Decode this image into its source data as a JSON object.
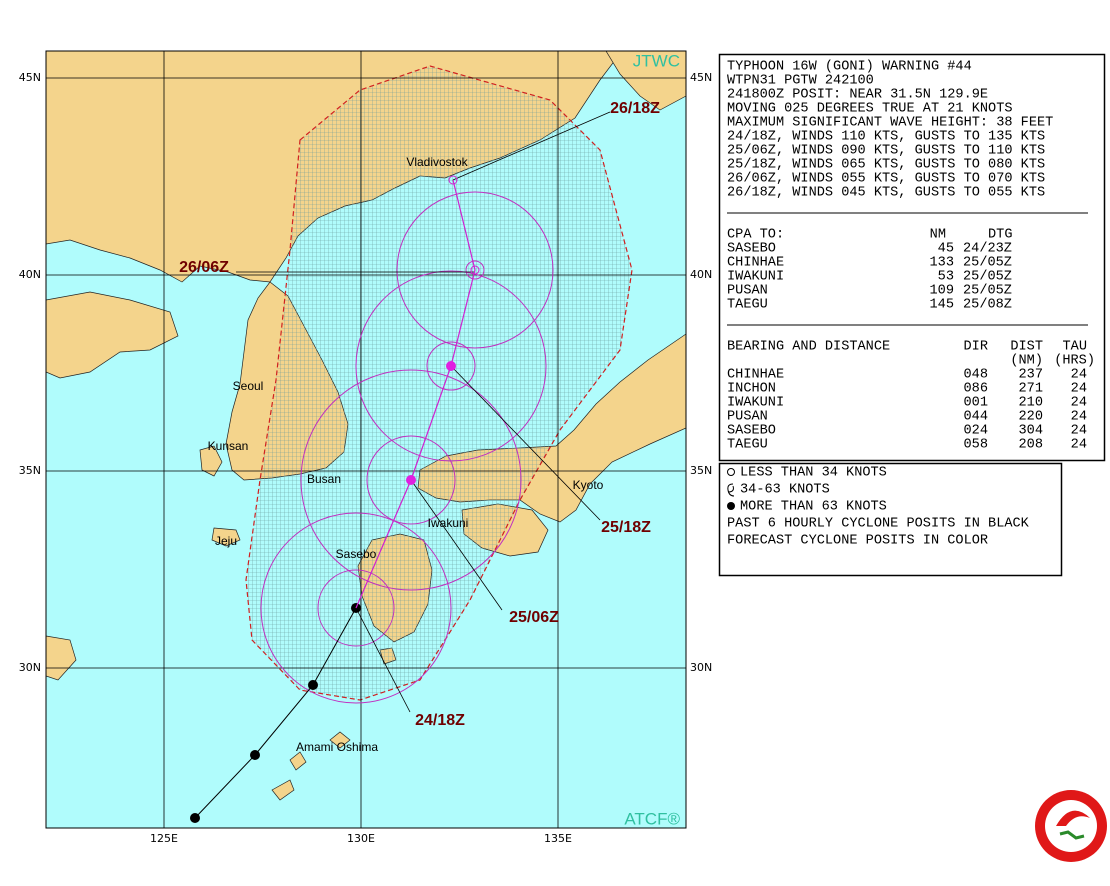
{
  "map": {
    "corner_labels": {
      "top": "JTWC",
      "bottom": "ATCF®"
    },
    "lat_labels": [
      "45N",
      "40N",
      "35N",
      "30N"
    ],
    "lon_labels": [
      "125E",
      "130E",
      "135E"
    ],
    "places": [
      "Vladivostok",
      "Seoul",
      "Kunsan",
      "Busan",
      "Iwakuni",
      "Kyoto",
      "Jeju",
      "Sasebo",
      "Amami Oshima"
    ],
    "times": [
      "26/18Z",
      "26/06Z",
      "25/18Z",
      "25/06Z",
      "24/18Z"
    ]
  },
  "warning": {
    "lines": [
      "TYPHOON 16W (GONI) WARNING #44",
      "WTPN31 PGTW 242100",
      "241800Z POSIT: NEAR 31.5N 129.9E",
      "MOVING 025 DEGREES TRUE AT 21 KNOTS",
      "MAXIMUM SIGNIFICANT WAVE HEIGHT: 38 FEET",
      "24/18Z, WINDS 110 KTS, GUSTS TO 135 KTS",
      "25/06Z, WINDS 090 KTS, GUSTS TO 110 KTS",
      "25/18Z, WINDS 065 KTS, GUSTS TO 080 KTS",
      "26/06Z, WINDS 055 KTS, GUSTS TO 070 KTS",
      "26/18Z, WINDS 045 KTS, GUSTS TO 055 KTS"
    ],
    "cpa": {
      "title": "CPA TO:",
      "headers": [
        "NM",
        "DTG"
      ],
      "rows": [
        [
          "SASEBO",
          "45",
          "24/23Z"
        ],
        [
          "CHINHAE",
          "133",
          "25/05Z"
        ],
        [
          "IWAKUNI",
          "53",
          "25/05Z"
        ],
        [
          "PUSAN",
          "109",
          "25/05Z"
        ],
        [
          "TAEGU",
          "145",
          "25/08Z"
        ]
      ]
    },
    "bearing": {
      "title": "BEARING AND DISTANCE",
      "headers": [
        "DIR",
        "DIST",
        "TAU"
      ],
      "units": [
        "(NM)",
        "(HRS)"
      ],
      "rows": [
        [
          "CHINHAE",
          "048",
          "237",
          "24"
        ],
        [
          "INCHON",
          "086",
          "271",
          "24"
        ],
        [
          "IWAKUNI",
          "001",
          "210",
          "24"
        ],
        [
          "PUSAN",
          "044",
          "220",
          "24"
        ],
        [
          "SASEBO",
          "024",
          "304",
          "24"
        ],
        [
          "TAEGU",
          "058",
          "208",
          "24"
        ]
      ]
    }
  },
  "legend": {
    "items": [
      "LESS THAN 34 KNOTS",
      "34-63 KNOTS",
      "MORE THAN 63 KNOTS"
    ],
    "notes": [
      "PAST 6 HOURLY CYCLONE POSITS IN BLACK",
      "FORECAST CYCLONE POSITS IN COLOR"
    ]
  }
}
